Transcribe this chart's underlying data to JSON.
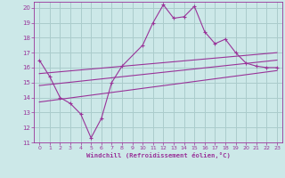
{
  "xlabel": "Windchill (Refroidissement éolien,°C)",
  "background_color": "#cce8e8",
  "grid_color": "#aacccc",
  "line_color": "#993399",
  "xlim": [
    -0.5,
    23.5
  ],
  "ylim": [
    11,
    20.4
  ],
  "yticks": [
    11,
    12,
    13,
    14,
    15,
    16,
    17,
    18,
    19,
    20
  ],
  "xticks": [
    0,
    1,
    2,
    3,
    4,
    5,
    6,
    7,
    8,
    9,
    10,
    11,
    12,
    13,
    14,
    15,
    16,
    17,
    18,
    19,
    20,
    21,
    22,
    23
  ],
  "line1_x": [
    0,
    1,
    2,
    3,
    4,
    5,
    6,
    7,
    8,
    10,
    11,
    12,
    13,
    14,
    15,
    16,
    17,
    18,
    19,
    20,
    21,
    22,
    23
  ],
  "line1_y": [
    16.5,
    15.4,
    14.0,
    13.6,
    12.9,
    11.3,
    12.6,
    15.0,
    16.1,
    17.5,
    19.0,
    20.2,
    19.3,
    19.4,
    20.1,
    18.4,
    17.6,
    17.9,
    17.0,
    16.3,
    16.1,
    16.0,
    16.0
  ],
  "line2_x": [
    0,
    23
  ],
  "line2_y": [
    15.6,
    17.0
  ],
  "line3_x": [
    0,
    23
  ],
  "line3_y": [
    14.8,
    16.5
  ],
  "line4_x": [
    0,
    23
  ],
  "line4_y": [
    13.7,
    15.8
  ]
}
